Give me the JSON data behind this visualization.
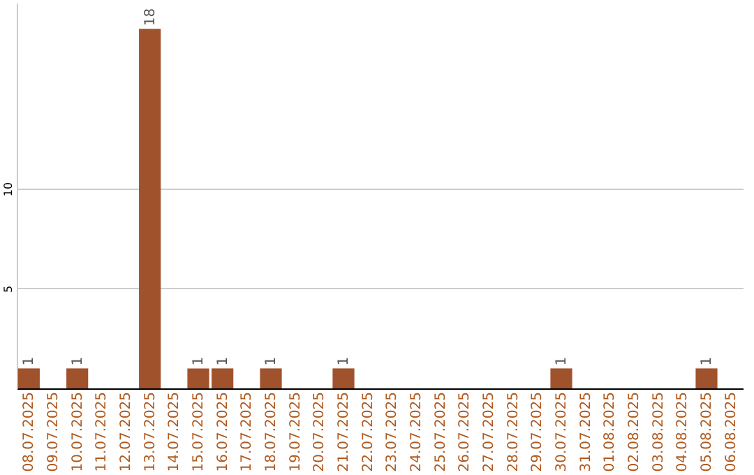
{
  "chart_data": {
    "type": "bar",
    "categories": [
      "08.07.2025",
      "09.07.2025",
      "10.07.2025",
      "11.07.2025",
      "12.07.2025",
      "13.07.2025",
      "14.07.2025",
      "15.07.2025",
      "16.07.2025",
      "17.07.2025",
      "18.07.2025",
      "19.07.2025",
      "20.07.2025",
      "21.07.2025",
      "22.07.2025",
      "23.07.2025",
      "24.07.2025",
      "25.07.2025",
      "26.07.2025",
      "27.07.2025",
      "28.07.2025",
      "29.07.2025",
      "30.07.2025",
      "31.07.2025",
      "01.08.2025",
      "02.08.2025",
      "03.08.2025",
      "04.08.2025",
      "05.08.2025",
      "06.08.2025"
    ],
    "values": [
      1,
      null,
      1,
      null,
      null,
      18,
      null,
      1,
      1,
      null,
      1,
      null,
      null,
      1,
      null,
      null,
      null,
      null,
      null,
      null,
      null,
      null,
      1,
      null,
      null,
      null,
      null,
      null,
      1,
      null
    ],
    "color": "#a0522d",
    "ylim": [
      0,
      19.3
    ],
    "yticks": [
      5,
      10
    ],
    "grid": "y",
    "data_labels": true
  }
}
